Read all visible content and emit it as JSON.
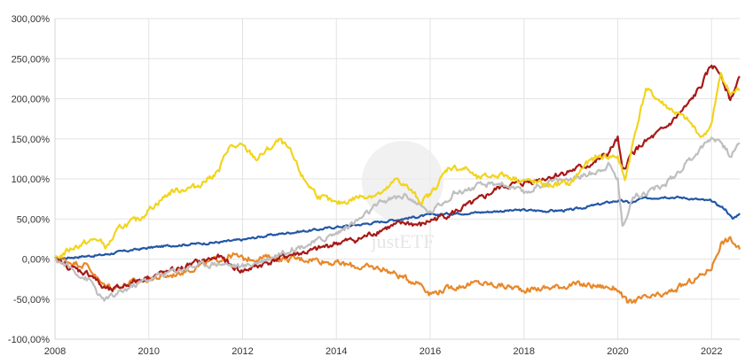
{
  "chart_data": {
    "type": "line",
    "title": "",
    "xlabel": "",
    "ylabel": "",
    "xlim": [
      2008,
      2022.6
    ],
    "ylim": [
      -100,
      300
    ],
    "x_ticks": [
      "2008",
      "2010",
      "2012",
      "2014",
      "2016",
      "2018",
      "2020",
      "2022"
    ],
    "y_ticks": [
      "300,00%",
      "250,00%",
      "200,00%",
      "150,00%",
      "100,00%",
      "50,00%",
      "0,00%",
      "-50,00%",
      "-100,00%"
    ],
    "grid": true,
    "legend": "none",
    "watermark": "justETF",
    "series": [
      {
        "color": "#2357a5",
        "points": [
          [
            2008,
            0
          ],
          [
            2008.5,
            3
          ],
          [
            2009,
            5
          ],
          [
            2009.5,
            10
          ],
          [
            2010,
            14
          ],
          [
            2010.5,
            17
          ],
          [
            2011,
            19
          ],
          [
            2011.5,
            21
          ],
          [
            2012,
            24
          ],
          [
            2012.5,
            29
          ],
          [
            2013,
            33
          ],
          [
            2013.5,
            36
          ],
          [
            2014,
            40
          ],
          [
            2014.5,
            43
          ],
          [
            2015,
            47
          ],
          [
            2015.5,
            51
          ],
          [
            2016,
            55
          ],
          [
            2016.5,
            57
          ],
          [
            2017,
            58
          ],
          [
            2017.5,
            60
          ],
          [
            2018,
            61
          ],
          [
            2018.5,
            60
          ],
          [
            2019,
            61
          ],
          [
            2019.5,
            67
          ],
          [
            2020,
            73
          ],
          [
            2020.3,
            70
          ],
          [
            2020.5,
            75
          ],
          [
            2021,
            78
          ],
          [
            2021.5,
            76
          ],
          [
            2022,
            72
          ],
          [
            2022.3,
            62
          ],
          [
            2022.45,
            50
          ],
          [
            2022.6,
            57
          ]
        ]
      },
      {
        "color": "#e8882a",
        "points": [
          [
            2008,
            0
          ],
          [
            2008.3,
            -3
          ],
          [
            2008.7,
            -8
          ],
          [
            2009,
            -32
          ],
          [
            2009.3,
            -35
          ],
          [
            2009.6,
            -30
          ],
          [
            2010,
            -25
          ],
          [
            2010.5,
            -20
          ],
          [
            2011,
            -10
          ],
          [
            2011.5,
            0
          ],
          [
            2011.8,
            5
          ],
          [
            2012,
            0
          ],
          [
            2012.5,
            2
          ],
          [
            2013,
            0
          ],
          [
            2013.5,
            0
          ],
          [
            2014,
            -5
          ],
          [
            2014.5,
            -10
          ],
          [
            2015,
            -12
          ],
          [
            2015.5,
            -25
          ],
          [
            2015.8,
            -30
          ],
          [
            2016,
            -43
          ],
          [
            2016.5,
            -35
          ],
          [
            2017,
            -30
          ],
          [
            2017.5,
            -33
          ],
          [
            2018,
            -38
          ],
          [
            2018.5,
            -36
          ],
          [
            2019,
            -32
          ],
          [
            2019.5,
            -33
          ],
          [
            2020,
            -37
          ],
          [
            2020.2,
            -55
          ],
          [
            2020.5,
            -50
          ],
          [
            2021,
            -45
          ],
          [
            2021.5,
            -30
          ],
          [
            2021.8,
            -20
          ],
          [
            2022,
            -10
          ],
          [
            2022.2,
            20
          ],
          [
            2022.4,
            25
          ],
          [
            2022.6,
            12
          ]
        ]
      },
      {
        "color": "#a81818",
        "points": [
          [
            2008,
            0
          ],
          [
            2008.3,
            -10
          ],
          [
            2008.8,
            -20
          ],
          [
            2009,
            -35
          ],
          [
            2009.2,
            -40
          ],
          [
            2009.6,
            -30
          ],
          [
            2010,
            -22
          ],
          [
            2010.5,
            -15
          ],
          [
            2011,
            -5
          ],
          [
            2011.5,
            3
          ],
          [
            2011.8,
            -10
          ],
          [
            2012,
            -15
          ],
          [
            2012.5,
            -5
          ],
          [
            2013,
            5
          ],
          [
            2013.5,
            10
          ],
          [
            2014,
            20
          ],
          [
            2014.5,
            25
          ],
          [
            2015,
            38
          ],
          [
            2015.5,
            45
          ],
          [
            2015.8,
            42
          ],
          [
            2016,
            48
          ],
          [
            2016.5,
            58
          ],
          [
            2017,
            72
          ],
          [
            2017.5,
            90
          ],
          [
            2018,
            95
          ],
          [
            2018.5,
            102
          ],
          [
            2019,
            110
          ],
          [
            2019.5,
            120
          ],
          [
            2019.8,
            132
          ],
          [
            2020,
            150
          ],
          [
            2020.1,
            108
          ],
          [
            2020.3,
            132
          ],
          [
            2020.5,
            142
          ],
          [
            2021,
            162
          ],
          [
            2021.5,
            192
          ],
          [
            2021.8,
            218
          ],
          [
            2022,
            242
          ],
          [
            2022.2,
            232
          ],
          [
            2022.4,
            198
          ],
          [
            2022.6,
            228
          ]
        ]
      },
      {
        "color": "#bfbfbf",
        "points": [
          [
            2008,
            0
          ],
          [
            2008.3,
            -10
          ],
          [
            2008.8,
            -30
          ],
          [
            2009,
            -52
          ],
          [
            2009.3,
            -45
          ],
          [
            2009.6,
            -35
          ],
          [
            2010,
            -25
          ],
          [
            2010.5,
            -15
          ],
          [
            2011,
            -8
          ],
          [
            2011.5,
            -5
          ],
          [
            2012,
            -10
          ],
          [
            2012.5,
            0
          ],
          [
            2013,
            12
          ],
          [
            2013.5,
            20
          ],
          [
            2014,
            32
          ],
          [
            2014.5,
            50
          ],
          [
            2015,
            72
          ],
          [
            2015.5,
            80
          ],
          [
            2015.8,
            65
          ],
          [
            2016,
            58
          ],
          [
            2016.5,
            82
          ],
          [
            2017,
            90
          ],
          [
            2017.5,
            95
          ],
          [
            2018,
            82
          ],
          [
            2018.5,
            96
          ],
          [
            2019,
            100
          ],
          [
            2019.5,
            108
          ],
          [
            2019.8,
            118
          ],
          [
            2020,
            100
          ],
          [
            2020.1,
            40
          ],
          [
            2020.3,
            75
          ],
          [
            2020.5,
            82
          ],
          [
            2021,
            92
          ],
          [
            2021.5,
            122
          ],
          [
            2021.8,
            140
          ],
          [
            2022,
            152
          ],
          [
            2022.2,
            148
          ],
          [
            2022.4,
            128
          ],
          [
            2022.6,
            145
          ]
        ]
      },
      {
        "color": "#f2d41f",
        "points": [
          [
            2008,
            0
          ],
          [
            2008.4,
            15
          ],
          [
            2008.9,
            25
          ],
          [
            2009.1,
            15
          ],
          [
            2009.4,
            40
          ],
          [
            2009.8,
            50
          ],
          [
            2010,
            62
          ],
          [
            2010.5,
            85
          ],
          [
            2011,
            90
          ],
          [
            2011.5,
            110
          ],
          [
            2011.7,
            140
          ],
          [
            2012,
            140
          ],
          [
            2012.3,
            125
          ],
          [
            2012.8,
            148
          ],
          [
            2013,
            135
          ],
          [
            2013.3,
            100
          ],
          [
            2013.6,
            80
          ],
          [
            2014,
            68
          ],
          [
            2014.5,
            78
          ],
          [
            2015,
            82
          ],
          [
            2015.3,
            100
          ],
          [
            2015.5,
            90
          ],
          [
            2015.8,
            72
          ],
          [
            2016,
            80
          ],
          [
            2016.4,
            115
          ],
          [
            2016.8,
            112
          ],
          [
            2017,
            100
          ],
          [
            2017.5,
            106
          ],
          [
            2018,
            98
          ],
          [
            2018.5,
            92
          ],
          [
            2019,
            94
          ],
          [
            2019.3,
            118
          ],
          [
            2019.6,
            128
          ],
          [
            2020,
            128
          ],
          [
            2020.15,
            98
          ],
          [
            2020.4,
            165
          ],
          [
            2020.6,
            212
          ],
          [
            2021,
            192
          ],
          [
            2021.5,
            172
          ],
          [
            2021.8,
            152
          ],
          [
            2022,
            168
          ],
          [
            2022.2,
            232
          ],
          [
            2022.4,
            205
          ],
          [
            2022.6,
            212
          ]
        ]
      }
    ]
  }
}
